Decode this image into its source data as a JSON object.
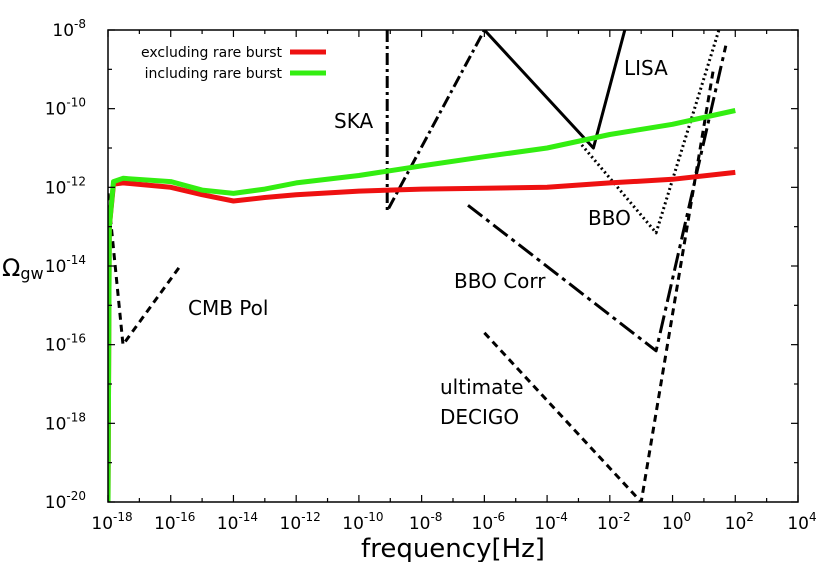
{
  "chart_data": {
    "type": "line",
    "xscale": "log",
    "yscale": "log",
    "xlabel": "frequency[Hz]",
    "ylabel": {
      "main": "Ω",
      "sub": "gw"
    },
    "xlim": [
      1e-18,
      10000.0
    ],
    "ylim": [
      1e-20,
      1e-08
    ],
    "grid": false,
    "legend_position": "top-left",
    "x_ticks": [
      {
        "base": "10",
        "exp": "-18"
      },
      {
        "base": "10",
        "exp": "-16"
      },
      {
        "base": "10",
        "exp": "-14"
      },
      {
        "base": "10",
        "exp": "-12"
      },
      {
        "base": "10",
        "exp": "-10"
      },
      {
        "base": "10",
        "exp": "-8"
      },
      {
        "base": "10",
        "exp": "-6"
      },
      {
        "base": "10",
        "exp": "-4"
      },
      {
        "base": "10",
        "exp": "-2"
      },
      {
        "base": "10",
        "exp": "0"
      },
      {
        "base": "10",
        "exp": "2"
      },
      {
        "base": "10",
        "exp": "4"
      }
    ],
    "y_ticks": [
      {
        "base": "10",
        "exp": "-20"
      },
      {
        "base": "10",
        "exp": "-18"
      },
      {
        "base": "10",
        "exp": "-16"
      },
      {
        "base": "10",
        "exp": "-14"
      },
      {
        "base": "10",
        "exp": "-12"
      },
      {
        "base": "10",
        "exp": "-10"
      },
      {
        "base": "10",
        "exp": "-8"
      }
    ],
    "series": [
      {
        "name": "excluding rare burst",
        "color": "#ee1111",
        "in_legend": true,
        "style": "solid-thick",
        "points": [
          [
            1e-18,
            1e-20
          ],
          [
            1.1e-18,
            1e-13
          ],
          [
            1.5e-18,
            1.2e-12
          ],
          [
            3e-18,
            1.3e-12
          ],
          [
            1e-16,
            1e-12
          ],
          [
            1e-15,
            6.5e-13
          ],
          [
            1e-14,
            4.5e-13
          ],
          [
            1e-13,
            5.5e-13
          ],
          [
            1e-12,
            6.5e-13
          ],
          [
            1e-10,
            8e-13
          ],
          [
            1e-08,
            9e-13
          ],
          [
            1e-06,
            9.5e-13
          ],
          [
            0.0001,
            1e-12
          ],
          [
            0.01,
            1.3e-12
          ],
          [
            1,
            1.6e-12
          ],
          [
            100,
            2.4e-12
          ]
        ]
      },
      {
        "name": "including rare burst",
        "color": "#33ee11",
        "in_legend": true,
        "style": "solid-thick",
        "points": [
          [
            1e-18,
            1e-20
          ],
          [
            1.1e-18,
            1e-13
          ],
          [
            1.5e-18,
            1.4e-12
          ],
          [
            3e-18,
            1.7e-12
          ],
          [
            1e-16,
            1.4e-12
          ],
          [
            1e-15,
            8.5e-13
          ],
          [
            1e-14,
            7e-13
          ],
          [
            1e-13,
            9e-13
          ],
          [
            1e-12,
            1.3e-12
          ],
          [
            1e-10,
            2e-12
          ],
          [
            1e-08,
            3.5e-12
          ],
          [
            1e-06,
            6e-12
          ],
          [
            0.0001,
            1e-11
          ],
          [
            0.01,
            2.2e-11
          ],
          [
            1,
            4e-11
          ],
          [
            100,
            9e-11
          ]
        ]
      },
      {
        "name": "CMB Pol",
        "color": "#000000",
        "in_legend": false,
        "style": "dashed",
        "points": [
          [
            1e-18,
            7e-13
          ],
          [
            3e-18,
            1e-16
          ],
          [
            2e-16,
            1e-14
          ]
        ]
      },
      {
        "name": "SKA",
        "color": "#000000",
        "in_legend": false,
        "style": "dashdot",
        "points": [
          [
            8e-10,
            1e-08
          ],
          [
            8e-10,
            2.5e-13
          ],
          [
            1e-06,
            1e-08
          ]
        ]
      },
      {
        "name": "LISA",
        "color": "#000000",
        "in_legend": false,
        "style": "solid",
        "points": [
          [
            1e-06,
            1e-08
          ],
          [
            0.003,
            1e-11
          ],
          [
            0.03,
            1e-08
          ]
        ]
      },
      {
        "name": "BBO",
        "color": "#000000",
        "in_legend": false,
        "style": "dotted",
        "points": [
          [
            0.001,
            1.5e-11
          ],
          [
            0.3,
            7e-14
          ],
          [
            30,
            1e-08
          ]
        ]
      },
      {
        "name": "BBO Corr",
        "color": "#000000",
        "in_legend": false,
        "style": "longdashdot",
        "points": [
          [
            3e-07,
            3.5e-13
          ],
          [
            0.3,
            7e-17
          ],
          [
            50,
            4e-09
          ]
        ]
      },
      {
        "name": "ultimate DECIGO",
        "color": "#000000",
        "in_legend": false,
        "style": "dashed",
        "points": [
          [
            1e-06,
            2e-16
          ],
          [
            0.1,
            1e-20
          ],
          [
            20,
            1e-09
          ]
        ]
      }
    ],
    "annotations": [
      {
        "text": "SKA"
      },
      {
        "text": "LISA"
      },
      {
        "text": "BBO"
      },
      {
        "text": "BBO Corr"
      },
      {
        "text": "CMB Pol"
      },
      {
        "text": "ultimate"
      },
      {
        "text": "DECIGO"
      }
    ]
  }
}
